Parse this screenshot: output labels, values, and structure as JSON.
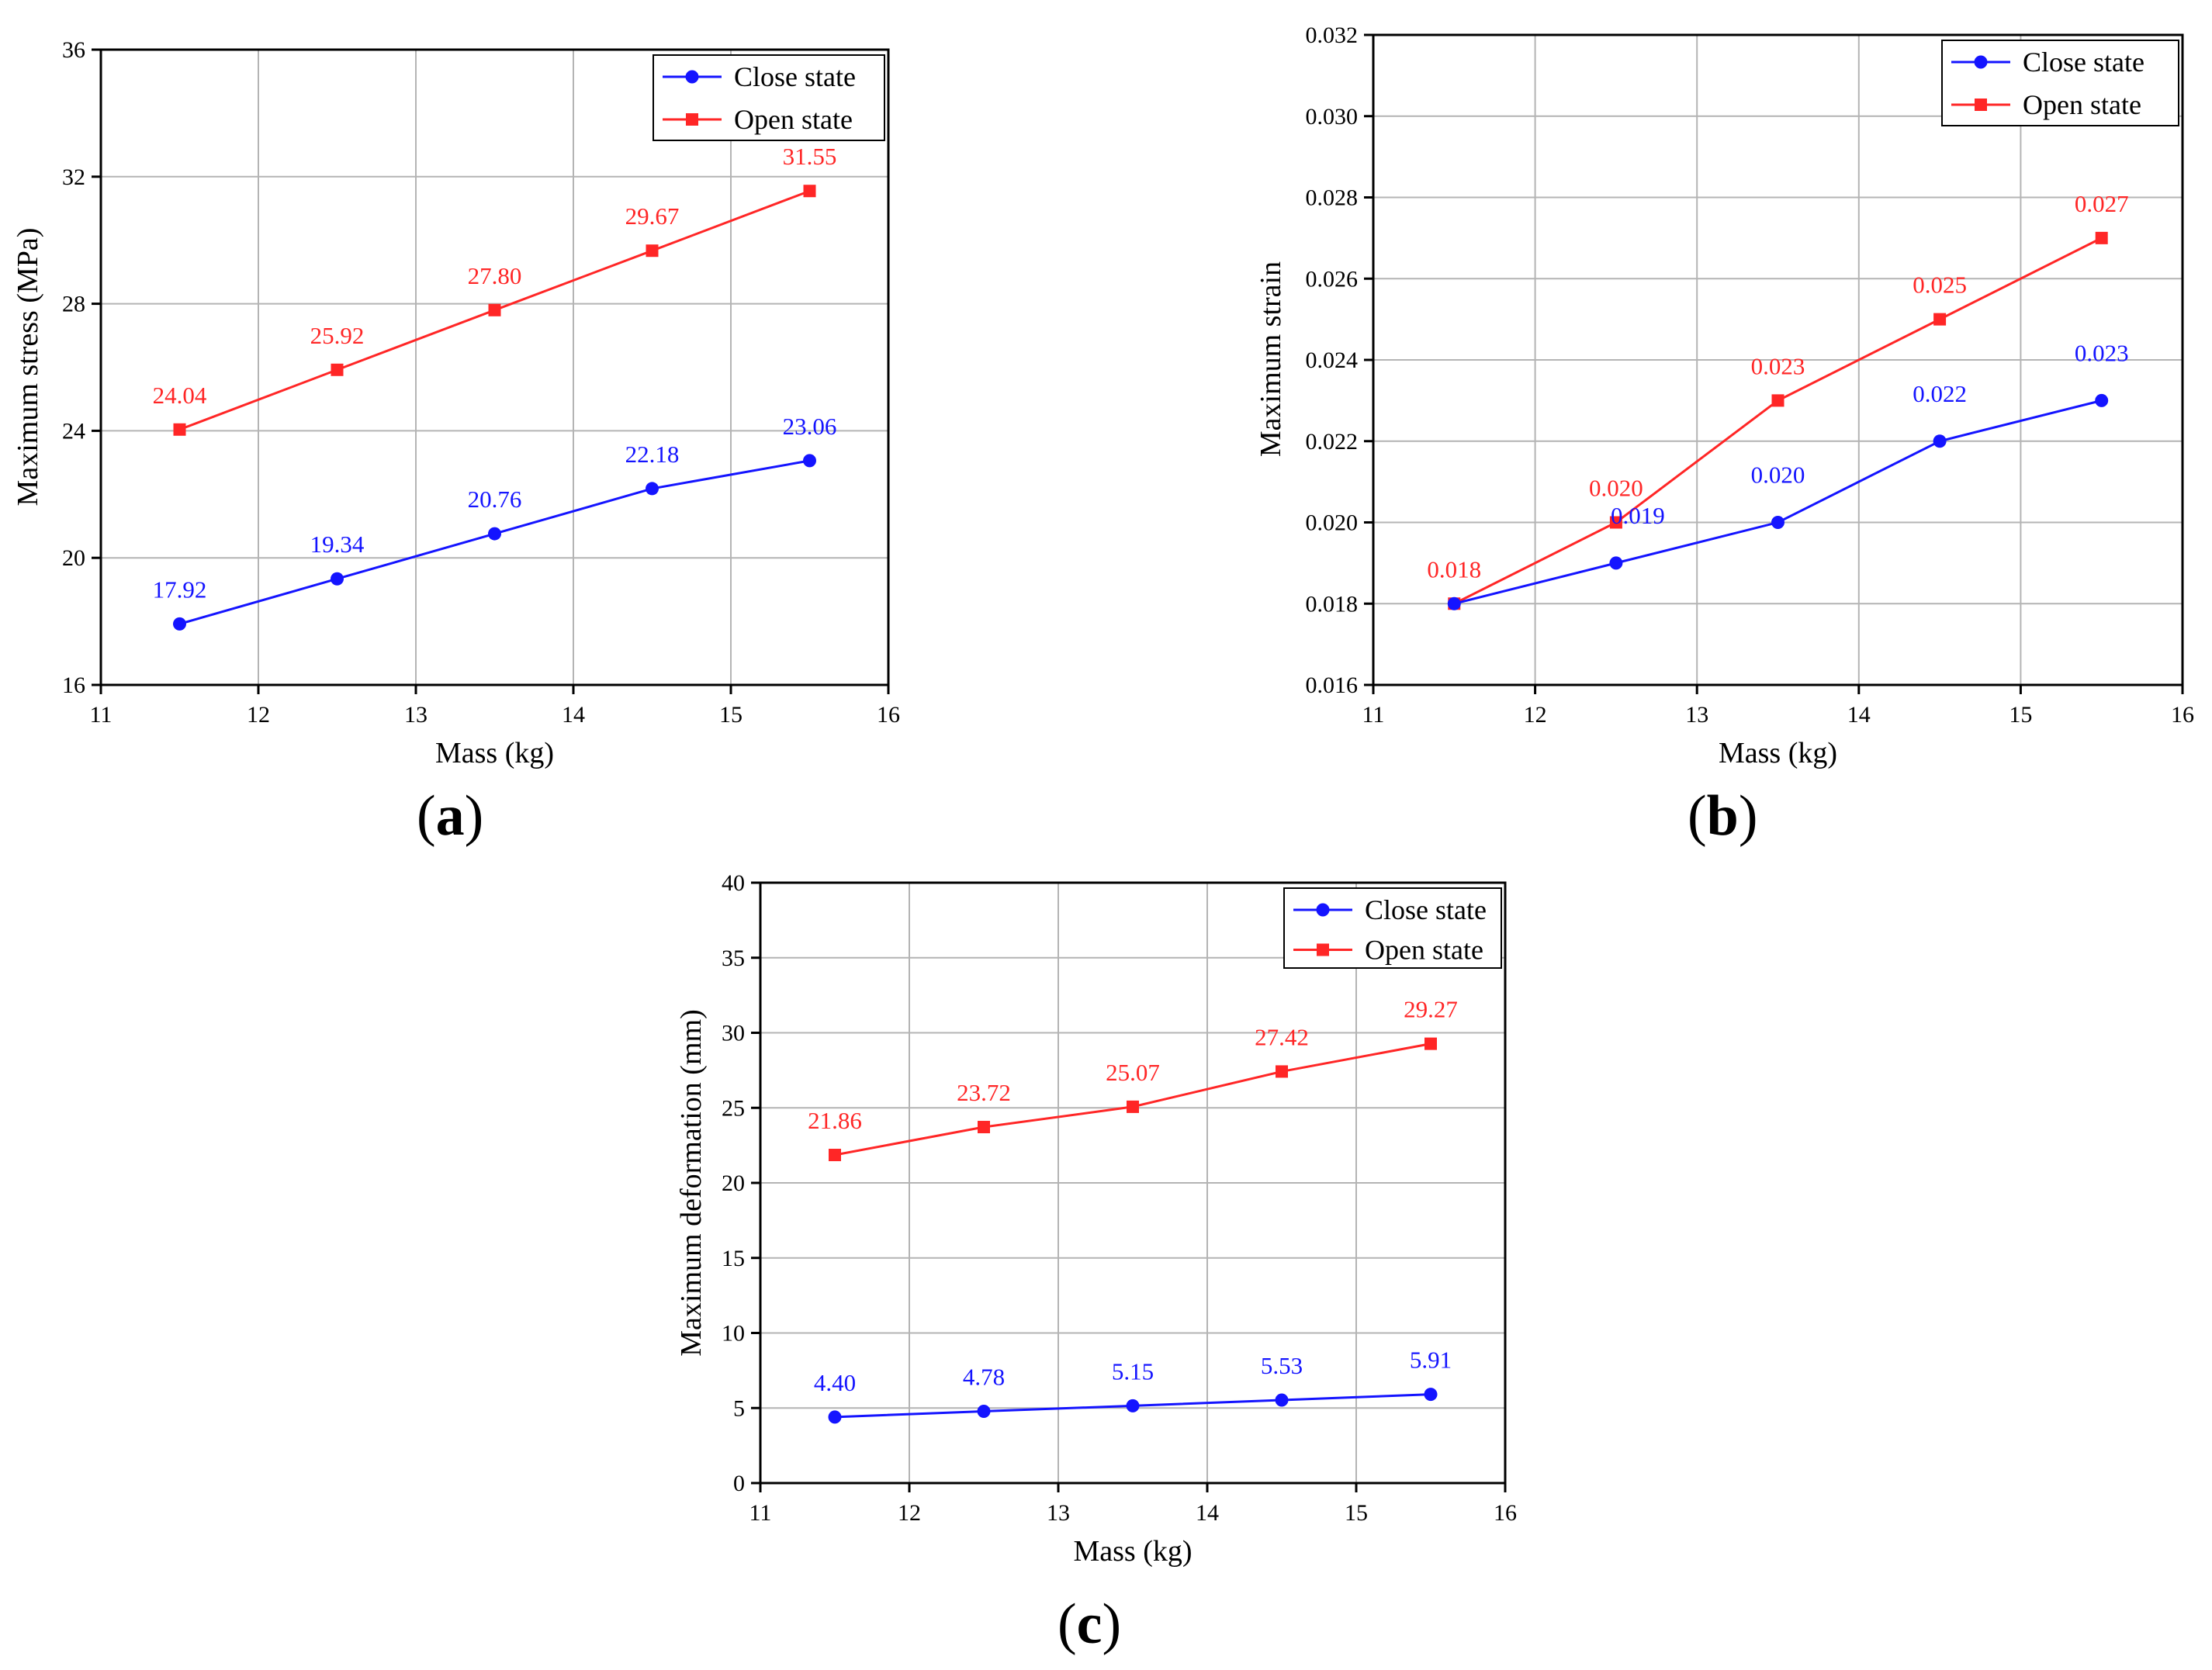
{
  "colors": {
    "close": "#1414ff",
    "open": "#ff2626",
    "grid": "#b4b4b4",
    "axis": "#000000"
  },
  "chart_data": [
    {
      "type": "line",
      "panel": "a",
      "xlabel": "Mass (kg)",
      "ylabel": "Maximum stress (MPa)",
      "xlim": [
        11,
        16
      ],
      "ylim": [
        16,
        36
      ],
      "xticks": [
        "11",
        "12",
        "13",
        "14",
        "15",
        "16"
      ],
      "yticks": [
        "16",
        "20",
        "24",
        "28",
        "32",
        "36"
      ],
      "grid": true,
      "legend_position": "top-right",
      "x": [
        11.5,
        12.5,
        13.5,
        14.5,
        15.5
      ],
      "series": [
        {
          "name": "Close state",
          "marker": "circle",
          "values": [
            17.92,
            19.34,
            20.76,
            22.18,
            23.06
          ],
          "labels": [
            "17.92",
            "19.34",
            "20.76",
            "22.18",
            "23.06"
          ]
        },
        {
          "name": "Open state",
          "marker": "square",
          "values": [
            24.04,
            25.92,
            27.8,
            29.67,
            31.55
          ],
          "labels": [
            "24.04",
            "25.92",
            "27.80",
            "29.67",
            "31.55"
          ]
        }
      ]
    },
    {
      "type": "line",
      "panel": "b",
      "xlabel": "Mass (kg)",
      "ylabel": "Maximum strain",
      "xlim": [
        11,
        16
      ],
      "ylim": [
        0.016,
        0.032
      ],
      "xticks": [
        "11",
        "12",
        "13",
        "14",
        "15",
        "16"
      ],
      "yticks": [
        "0.016",
        "0.018",
        "0.020",
        "0.022",
        "0.024",
        "0.026",
        "0.028",
        "0.030",
        "0.032"
      ],
      "grid": true,
      "legend_position": "top-right",
      "x": [
        11.5,
        12.5,
        13.5,
        14.5,
        15.5
      ],
      "series": [
        {
          "name": "Close state",
          "marker": "circle",
          "values": [
            0.018,
            0.019,
            0.02,
            0.022,
            0.023
          ],
          "labels": [
            "",
            "0.019",
            "0.020",
            "0.022",
            "0.023"
          ]
        },
        {
          "name": "Open state",
          "marker": "square",
          "values": [
            0.018,
            0.02,
            0.023,
            0.025,
            0.027
          ],
          "labels": [
            "0.018",
            "0.020",
            "0.023",
            "0.025",
            "0.027"
          ]
        }
      ]
    },
    {
      "type": "line",
      "panel": "c",
      "xlabel": "Mass (kg)",
      "ylabel": "Maximum deformation (mm)",
      "xlim": [
        11,
        16
      ],
      "ylim": [
        0,
        40
      ],
      "xticks": [
        "11",
        "12",
        "13",
        "14",
        "15",
        "16"
      ],
      "yticks": [
        "0",
        "5",
        "10",
        "15",
        "20",
        "25",
        "30",
        "35",
        "40"
      ],
      "grid": true,
      "legend_position": "top-right",
      "x": [
        11.5,
        12.5,
        13.5,
        14.5,
        15.5
      ],
      "series": [
        {
          "name": "Close state",
          "marker": "circle",
          "values": [
            4.4,
            4.78,
            5.15,
            5.53,
            5.91
          ],
          "labels": [
            "4.40",
            "4.78",
            "5.15",
            "5.53",
            "5.91"
          ]
        },
        {
          "name": "Open state",
          "marker": "square",
          "values": [
            21.86,
            23.72,
            25.07,
            27.42,
            29.27
          ],
          "labels": [
            "21.86",
            "23.72",
            "25.07",
            "27.42",
            "29.27"
          ]
        }
      ]
    }
  ],
  "panel_labels": {
    "a": "a",
    "b": "b",
    "c": "c"
  }
}
